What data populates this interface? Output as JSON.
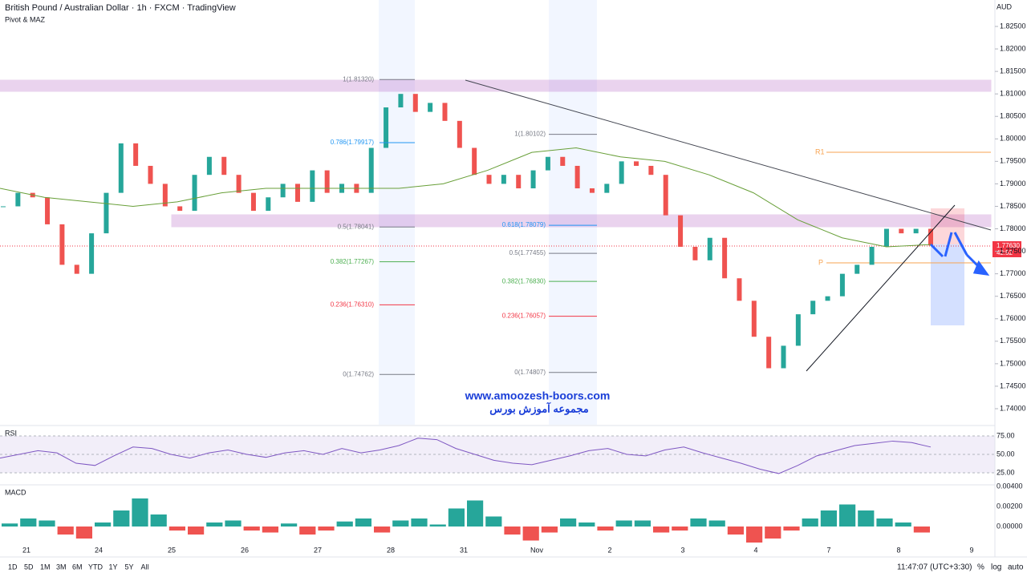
{
  "header": {
    "title": "British Pound / Australian Dollar · 1h · FXCM · TradingView",
    "indicator": "Pivot & MAZ",
    "currency": "AUD"
  },
  "price_axis": {
    "ticks": [
      {
        "value": 1.825,
        "label": "1.82500"
      },
      {
        "value": 1.82,
        "label": "1.82000"
      },
      {
        "value": 1.815,
        "label": "1.81500"
      },
      {
        "value": 1.81,
        "label": "1.81000"
      },
      {
        "value": 1.805,
        "label": "1.80500"
      },
      {
        "value": 1.8,
        "label": "1.80000"
      },
      {
        "value": 1.795,
        "label": "1.79500"
      },
      {
        "value": 1.79,
        "label": "1.79000"
      },
      {
        "value": 1.785,
        "label": "1.78500"
      },
      {
        "value": 1.78,
        "label": "1.78000"
      },
      {
        "value": 1.775,
        "label": "1.77500"
      },
      {
        "value": 1.77,
        "label": "1.77000"
      },
      {
        "value": 1.765,
        "label": "1.76500"
      },
      {
        "value": 1.76,
        "label": "1.76000"
      },
      {
        "value": 1.755,
        "label": "1.75500"
      },
      {
        "value": 1.75,
        "label": "1.75000"
      },
      {
        "value": 1.745,
        "label": "1.74500"
      },
      {
        "value": 1.74,
        "label": "1.74000"
      }
    ],
    "last_price": {
      "value": 1.7763,
      "label": "1.77630"
    },
    "countdown": "42:52"
  },
  "closes": [
    1.785,
    1.788,
    1.787,
    1.781,
    1.772,
    1.77,
    1.779,
    1.788,
    1.799,
    1.794,
    1.79,
    1.785,
    1.784,
    1.792,
    1.796,
    1.792,
    1.788,
    1.784,
    1.787,
    1.79,
    1.786,
    1.793,
    1.788,
    1.79,
    1.788,
    1.798,
    1.807,
    1.81,
    1.806,
    1.808,
    1.804,
    1.798,
    1.792,
    1.79,
    1.792,
    1.789,
    1.793,
    1.796,
    1.794,
    1.789,
    1.788,
    1.79,
    1.795,
    1.794,
    1.792,
    1.783,
    1.776,
    1.773,
    1.778,
    1.769,
    1.764,
    1.756,
    1.749,
    1.754,
    1.761,
    1.764,
    1.765,
    1.77,
    1.772,
    1.776,
    1.78,
    1.779,
    1.78,
    1.7763
  ],
  "moving_average": [
    1.789,
    1.787,
    1.786,
    1.785,
    1.786,
    1.788,
    1.789,
    1.789,
    1.789,
    1.789,
    1.79,
    1.793,
    1.797,
    1.798,
    1.796,
    1.795,
    1.792,
    1.788,
    1.782,
    1.778,
    1.776,
    1.7765
  ],
  "fib_1": {
    "levels": [
      {
        "value": 1.8132,
        "label": "1(1.81320)"
      },
      {
        "value": 1.79917,
        "label": "0.786(1.79917)"
      },
      {
        "value": 1.78041,
        "label": "0.5(1.78041)"
      },
      {
        "value": 1.77267,
        "label": "0.382(1.77267)"
      },
      {
        "value": 1.7631,
        "label": "0.236(1.76310)"
      },
      {
        "value": 1.74762,
        "label": "0(1.74762)"
      }
    ]
  },
  "fib_2": {
    "levels": [
      {
        "value": 1.80102,
        "label": "1(1.80102)"
      },
      {
        "value": 1.78079,
        "label": "0.618(1.78079)"
      },
      {
        "value": 1.77455,
        "label": "0.5(1.77455)"
      },
      {
        "value": 1.7683,
        "label": "0.382(1.76830)"
      },
      {
        "value": 1.76057,
        "label": "0.236(1.76057)"
      },
      {
        "value": 1.74807,
        "label": "0(1.74807)"
      }
    ]
  },
  "pivots": {
    "r1": "R1",
    "p": "P"
  },
  "watermark": {
    "url": "www.amoozesh-boors.com",
    "name": "مجموعه آموزش بورس"
  },
  "rsi": {
    "label": "RSI",
    "ticks": [
      {
        "value": 75,
        "label": "75.00"
      },
      {
        "value": 50,
        "label": "50.00"
      },
      {
        "value": 25,
        "label": "25.00"
      }
    ],
    "values": [
      45,
      50,
      55,
      52,
      38,
      35,
      48,
      60,
      58,
      50,
      45,
      52,
      56,
      50,
      46,
      52,
      55,
      50,
      58,
      52,
      56,
      62,
      72,
      70,
      58,
      50,
      42,
      38,
      36,
      42,
      48,
      55,
      58,
      50,
      48,
      56,
      60,
      52,
      45,
      38,
      30,
      24,
      35,
      48,
      55,
      62,
      65,
      68,
      66,
      60
    ]
  },
  "macd": {
    "label": "MACD",
    "ticks": [
      {
        "value": 0.004,
        "label": "0.00400"
      },
      {
        "value": 0.002,
        "label": "0.00200"
      },
      {
        "value": 0,
        "label": "0.00000"
      }
    ],
    "histogram": [
      0.0003,
      0.0008,
      0.0006,
      -0.0008,
      -0.0012,
      0.0004,
      0.0016,
      0.0028,
      0.0012,
      -0.0004,
      -0.0008,
      0.0004,
      0.0006,
      -0.0004,
      -0.0006,
      0.0003,
      -0.0008,
      -0.0004,
      0.0005,
      0.0008,
      -0.0006,
      0.0006,
      0.0008,
      0.0002,
      0.0018,
      0.0026,
      0.001,
      -0.0008,
      -0.0014,
      -0.0006,
      0.0008,
      0.0004,
      -0.0004,
      0.0006,
      0.0006,
      -0.0006,
      -0.0004,
      0.0008,
      0.0006,
      -0.0008,
      -0.0016,
      -0.0012,
      -0.0004,
      0.0008,
      0.0016,
      0.0022,
      0.0016,
      0.0008,
      0.0004,
      -0.0006
    ]
  },
  "dates": [
    "21",
    "24",
    "25",
    "26",
    "27",
    "28",
    "31",
    "Nov",
    "2",
    "3",
    "4",
    "7",
    "8",
    "9"
  ],
  "toolbar": {
    "ranges": [
      "1D",
      "5D",
      "1M",
      "3M",
      "6M",
      "YTD",
      "1Y",
      "5Y",
      "All"
    ],
    "clock": "11:47:07 (UTC+3:30)",
    "options": [
      "%",
      "log",
      "auto"
    ]
  }
}
